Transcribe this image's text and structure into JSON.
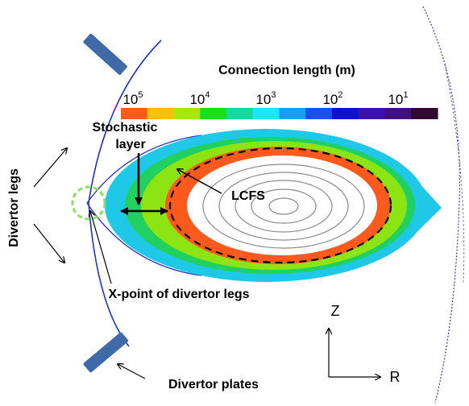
{
  "colorbar": {
    "title": "Connection length (m)",
    "ticks": [
      {
        "base": "10",
        "exp": "5"
      },
      {
        "base": "10",
        "exp": "4"
      },
      {
        "base": "10",
        "exp": "3"
      },
      {
        "base": "10",
        "exp": "2"
      },
      {
        "base": "10",
        "exp": "1"
      }
    ],
    "colors": [
      "#ff5a1e",
      "#ffc000",
      "#a8e800",
      "#16e016",
      "#10dca0",
      "#18e8f4",
      "#14a0f8",
      "#1850f0",
      "#1010d0",
      "#3a10b0",
      "#401080",
      "#300830"
    ]
  },
  "labels": {
    "stochastic_line1": "Stochastic",
    "stochastic_line2": "layer",
    "divertor_legs": "Divertor legs",
    "lcfs": "LCFS",
    "xpoint": "X-point of divertor legs",
    "divertor_plates": "Divertor plates",
    "axis_z": "Z",
    "axis_r": "R"
  },
  "palette": {
    "core_orange": "#ff5a1e",
    "layer_green": "#20d060",
    "layer_cyan": "#20c8e8",
    "legs_blue": "#2030c8",
    "surface_gray": "#8a8a8a",
    "plate_blue": "#3e6aa8",
    "xpoint_circle": "#88e060"
  }
}
